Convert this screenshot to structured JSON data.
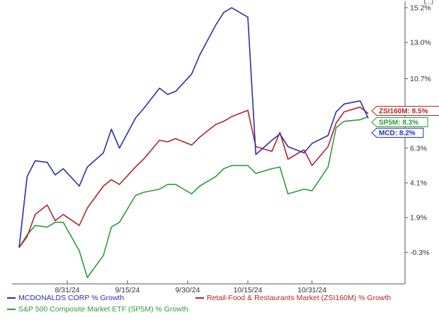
{
  "chart_data": {
    "type": "line",
    "x": [
      "2024-08-19",
      "2024-08-21",
      "2024-08-23",
      "2024-08-26",
      "2024-08-28",
      "2024-08-30",
      "2024-09-03",
      "2024-09-05",
      "2024-09-09",
      "2024-09-11",
      "2024-09-13",
      "2024-09-17",
      "2024-09-19",
      "2024-09-23",
      "2024-09-25",
      "2024-09-27",
      "2024-10-01",
      "2024-10-03",
      "2024-10-07",
      "2024-10-09",
      "2024-10-11",
      "2024-10-15",
      "2024-10-17",
      "2024-10-21",
      "2024-10-23",
      "2024-10-25",
      "2024-10-29",
      "2024-10-31",
      "2024-11-04",
      "2024-11-06",
      "2024-11-08",
      "2024-11-12",
      "2024-11-14"
    ],
    "series": [
      {
        "name": "MCDONALDS CORP % Growth",
        "color": "#2b2fb0",
        "label": "MCD: 8.2%",
        "values": [
          0,
          4.5,
          5.5,
          5.4,
          4.6,
          5.0,
          3.9,
          5.1,
          6.0,
          7.5,
          6.3,
          8.2,
          8.8,
          10.1,
          9.7,
          9.9,
          11.0,
          12.2,
          14.1,
          14.9,
          15.2,
          14.6,
          5.9,
          6.8,
          7.2,
          6.4,
          6.0,
          6.6,
          7.1,
          8.6,
          9.1,
          9.3,
          8.2
        ]
      },
      {
        "name": "Retail-Food & Restaurants Market (ZSI160M) % Growth",
        "color": "#b2242a",
        "label": "ZSI160M: 8.5%",
        "values": [
          0,
          0.7,
          2.1,
          2.7,
          1.7,
          2.1,
          1.4,
          2.5,
          3.9,
          4.3,
          4.0,
          5.1,
          5.6,
          6.8,
          6.7,
          6.9,
          6.5,
          7.0,
          7.8,
          8.0,
          8.3,
          8.7,
          6.4,
          6.1,
          7.3,
          5.6,
          6.2,
          5.2,
          6.4,
          7.9,
          8.6,
          8.9,
          8.5
        ]
      },
      {
        "name": "S&P 500 Composite Market ETF (SP5M) % Growth",
        "color": "#2e9a3b",
        "label": "SP5M: 8.3%",
        "values": [
          0,
          0.8,
          1.4,
          1.3,
          1.6,
          1.6,
          -0.2,
          -1.9,
          -0.5,
          1.3,
          1.6,
          3.3,
          3.5,
          3.7,
          4.0,
          4.0,
          3.4,
          3.9,
          4.5,
          5.0,
          5.2,
          5.2,
          4.7,
          5.0,
          5.1,
          3.4,
          3.7,
          3.6,
          5.1,
          7.6,
          8.0,
          8.1,
          8.3
        ]
      }
    ],
    "y_ticks": [
      "15.2%",
      "13.0%",
      "10.7%",
      "6.3%",
      "4.1%",
      "1.9%",
      "-0.3%"
    ],
    "x_ticks": [
      "8/31/24",
      "9/15/24",
      "9/30/24",
      "10/15/24",
      "10/31/24"
    ],
    "ylim": [
      -2.3,
      15.6
    ],
    "grid": false,
    "legend_position": "bottom"
  },
  "top_corner_text": "(...)",
  "legend": {
    "row1_left": "MCDONALDS CORP % Growth",
    "row1_right": "Retail-Food & Restaurants Market (ZSI160M) % Growth",
    "row2_left": "S&P 500 Composite Market ETF (SP5M) % Growth"
  }
}
